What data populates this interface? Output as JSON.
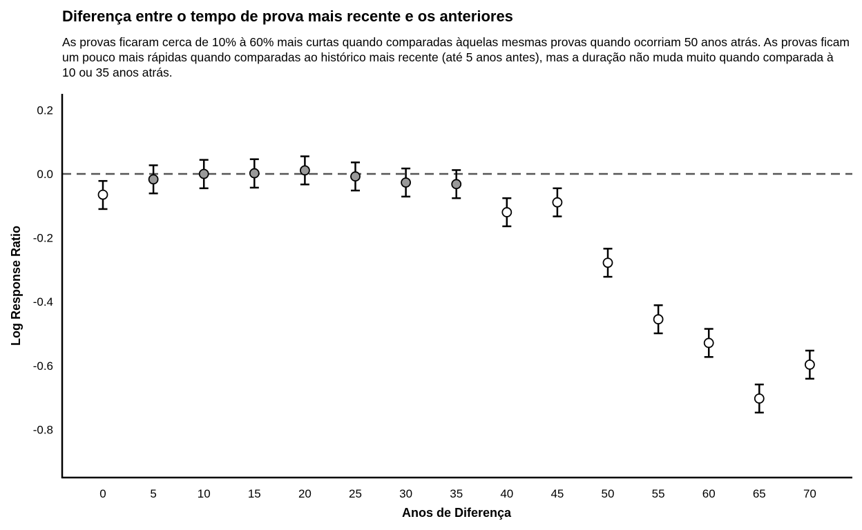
{
  "chart_data": {
    "type": "scatter",
    "title": "Diferença entre o tempo de prova mais recente e os anteriores",
    "subtitle": "As provas ficaram cerca de 10% à 60% mais curtas quando comparadas àquelas mesmas provas quando ocorriam 50 anos atrás. As provas ficam um pouco mais rápidas quando comparadas ao histórico mais recente (até 5 anos antes), mas a duração não muda muito quando comparada à 10 ou 35 anos atrás.",
    "xlabel": "Anos de Diferença",
    "ylabel": "Log Response Ratio",
    "x_ticks": [
      "0",
      "5",
      "10",
      "15",
      "20",
      "25",
      "30",
      "35",
      "40",
      "45",
      "50",
      "55",
      "60",
      "65",
      "70"
    ],
    "y_ticks": [
      "0.2",
      "0.0",
      "-0.2",
      "-0.4",
      "-0.6",
      "-0.8"
    ],
    "ylim": [
      -0.955,
      0.245
    ],
    "reference_line": 0,
    "grid": false,
    "colors": {
      "filled_point": "#999999",
      "open_point": "#ffffff",
      "reference_line": "#555555",
      "axis": "#000000"
    },
    "points": [
      {
        "x": 0,
        "y": -0.065,
        "lower": -0.11,
        "upper": -0.022,
        "filled": false
      },
      {
        "x": 5,
        "y": -0.017,
        "lower": -0.061,
        "upper": 0.027,
        "filled": true
      },
      {
        "x": 10,
        "y": 0.0,
        "lower": -0.045,
        "upper": 0.044,
        "filled": true
      },
      {
        "x": 15,
        "y": 0.002,
        "lower": -0.043,
        "upper": 0.046,
        "filled": true
      },
      {
        "x": 20,
        "y": 0.011,
        "lower": -0.033,
        "upper": 0.055,
        "filled": true
      },
      {
        "x": 25,
        "y": -0.008,
        "lower": -0.052,
        "upper": 0.036,
        "filled": true
      },
      {
        "x": 30,
        "y": -0.027,
        "lower": -0.071,
        "upper": 0.017,
        "filled": true
      },
      {
        "x": 35,
        "y": -0.032,
        "lower": -0.076,
        "upper": 0.012,
        "filled": true
      },
      {
        "x": 40,
        "y": -0.12,
        "lower": -0.164,
        "upper": -0.076,
        "filled": false
      },
      {
        "x": 45,
        "y": -0.089,
        "lower": -0.133,
        "upper": -0.045,
        "filled": false
      },
      {
        "x": 50,
        "y": -0.278,
        "lower": -0.322,
        "upper": -0.234,
        "filled": false
      },
      {
        "x": 55,
        "y": -0.455,
        "lower": -0.499,
        "upper": -0.411,
        "filled": false
      },
      {
        "x": 60,
        "y": -0.529,
        "lower": -0.573,
        "upper": -0.485,
        "filled": false
      },
      {
        "x": 65,
        "y": -0.703,
        "lower": -0.747,
        "upper": -0.659,
        "filled": false
      },
      {
        "x": 70,
        "y": -0.597,
        "lower": -0.641,
        "upper": -0.553,
        "filled": false
      }
    ]
  }
}
